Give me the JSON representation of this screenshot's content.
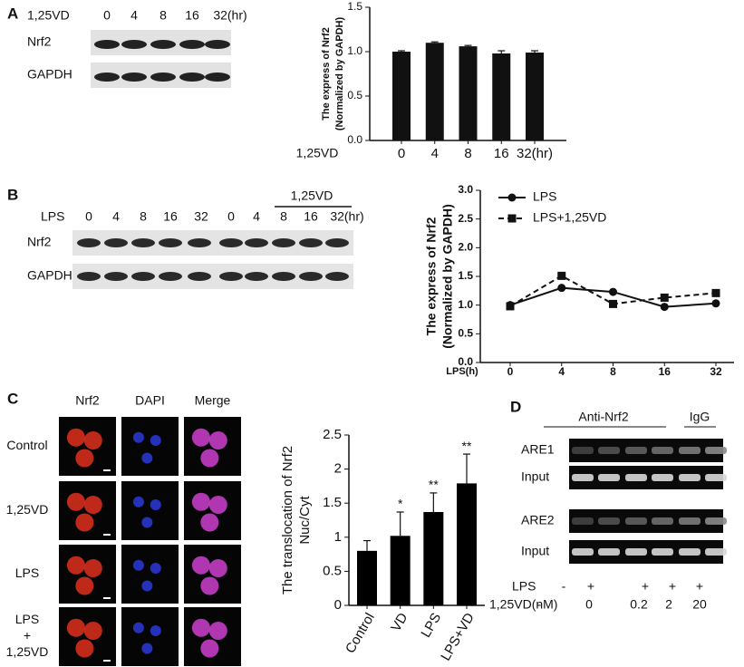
{
  "labels": [
    "A",
    "B",
    "C",
    "D"
  ],
  "blot_a": {
    "treatment": "1,25VD",
    "lanes": [
      "0",
      "4",
      "8",
      "16",
      "32(hr)"
    ],
    "rows": [
      "Nrf2",
      "GAPDH"
    ]
  },
  "blot_b": {
    "treatment": "LPS",
    "lanes": [
      "0",
      "4",
      "8",
      "16",
      "32",
      "0",
      "4",
      "8",
      "16",
      "32(hr)"
    ],
    "group": "1,25VD",
    "rows": [
      "Nrf2",
      "GAPDH"
    ]
  },
  "images_c": {
    "columns": [
      "Nrf2",
      "DAPI",
      "Merge"
    ],
    "rows": [
      [
        "Control"
      ],
      [
        "1,25VD"
      ],
      [
        "LPS"
      ],
      [
        "LPS",
        "+",
        "1,25VD"
      ]
    ]
  },
  "gel_d": {
    "groups": [
      "Anti-Nrf2",
      "IgG"
    ],
    "rows": [
      "ARE1",
      "Input",
      "ARE2",
      "Input"
    ],
    "conditions": [
      {
        "label": "LPS",
        "values": [
          "-",
          "+",
          "+",
          "+",
          "+"
        ]
      },
      {
        "label": "1,25VD(nM)",
        "values": [
          "-",
          "0",
          "0.2",
          "2",
          "20"
        ]
      }
    ]
  },
  "chart_data": [
    {
      "type": "bar",
      "y_label": [
        "The express of Nrf2",
        "(Normalized by GAPDH)"
      ],
      "x_label": "1,25VD",
      "categories": [
        "0",
        "4",
        "8",
        "16",
        "32(hr)"
      ],
      "values": [
        1.0,
        1.1,
        1.06,
        0.98,
        0.99
      ],
      "errors": [
        0.01,
        0.01,
        0.01,
        0.03,
        0.02
      ],
      "color": "#111111",
      "ylim": [
        0,
        1.5
      ],
      "yticks": [
        {
          "value": 0,
          "label": "0.0"
        },
        {
          "value": 0.5,
          "label": "0.5"
        },
        {
          "value": 1,
          "label": "1.0"
        },
        {
          "value": 1.5,
          "label": "1.5"
        }
      ]
    },
    {
      "type": "line",
      "y_label": [
        "The express of Nrf2",
        "(Normalized by GAPDH)"
      ],
      "x_label": "LPS(h)",
      "categories": [
        "0",
        "4",
        "8",
        "16",
        "32"
      ],
      "series": [
        {
          "name": "LPS",
          "color": "#111111",
          "marker": "circle",
          "dashed": false,
          "values": [
            1.0,
            1.3,
            1.23,
            0.97,
            1.03
          ]
        },
        {
          "name": "LPS+1,25VD",
          "color": "#111111",
          "marker": "square",
          "dashed": true,
          "values": [
            0.98,
            1.51,
            1.02,
            1.13,
            1.21
          ]
        }
      ],
      "ylim": [
        0,
        3
      ],
      "legend": "top-left",
      "yticks": [
        {
          "value": 0,
          "label": "0.0"
        },
        {
          "value": 0.5,
          "label": "0.5"
        },
        {
          "value": 1,
          "label": "1.0"
        },
        {
          "value": 1.5,
          "label": "1.5"
        },
        {
          "value": 2,
          "label": "2.0"
        },
        {
          "value": 2.5,
          "label": "2.5"
        },
        {
          "value": 3,
          "label": "3.0"
        }
      ]
    },
    {
      "type": "bar",
      "y_label": [
        "The translocation of Nrf2",
        "Nuc/Cyt"
      ],
      "rotate_labels": true,
      "categories": [
        "Control",
        "VD",
        "LPS",
        "LPS+VD"
      ],
      "values": [
        0.8,
        1.02,
        1.37,
        1.79
      ],
      "errors": [
        0.15,
        0.35,
        0.28,
        0.43
      ],
      "annotations": [
        null,
        "*",
        "**",
        "**"
      ],
      "color": "#000000",
      "ylim": [
        0,
        2.5
      ],
      "yticks": [
        0,
        0.5,
        1,
        1.5,
        2,
        2.5
      ]
    }
  ]
}
